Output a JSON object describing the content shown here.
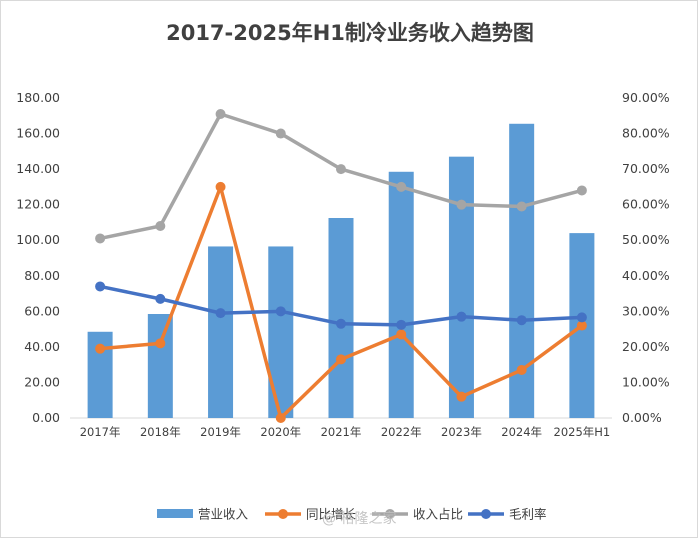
{
  "chart_data": {
    "type": "bar",
    "title": "2017-2025年H1制冷业务收入趋势图",
    "categories": [
      "2017年",
      "2018年",
      "2019年",
      "2020年",
      "2021年",
      "2022年",
      "2023年",
      "2024年",
      "2025年H1"
    ],
    "y_left": {
      "ylim": [
        0,
        180
      ],
      "ticks": [
        "0.00",
        "20.00",
        "40.00",
        "60.00",
        "80.00",
        "100.00",
        "120.00",
        "140.00",
        "160.00",
        "180.00"
      ]
    },
    "y_right": {
      "ylim": [
        0,
        0.9
      ],
      "ticks": [
        "0.00%",
        "10.00%",
        "20.00%",
        "30.00%",
        "40.00%",
        "50.00%",
        "60.00%",
        "70.00%",
        "80.00%",
        "90.00%"
      ]
    },
    "series": [
      {
        "name": "营业收入",
        "type": "bar",
        "axis": "left",
        "color": "#5b9bd5",
        "values": [
          48.5,
          58.5,
          96.5,
          96.5,
          112.5,
          138.5,
          147,
          165.5,
          104
        ]
      },
      {
        "name": "同比增长",
        "type": "line",
        "axis": "right",
        "color": "#ed7d31",
        "values": [
          0.195,
          0.21,
          0.65,
          0.0,
          0.165,
          0.235,
          0.06,
          0.135,
          0.26
        ]
      },
      {
        "name": "收入占比",
        "type": "line",
        "axis": "right",
        "color": "#a5a5a5",
        "values": [
          0.505,
          0.54,
          0.855,
          0.8,
          0.7,
          0.65,
          0.6,
          0.595,
          0.64
        ]
      },
      {
        "name": "毛利率",
        "type": "line",
        "axis": "right",
        "color": "#4472c4",
        "values": [
          0.37,
          0.335,
          0.295,
          0.3,
          0.265,
          0.262,
          0.285,
          0.275,
          0.283
        ]
      }
    ],
    "legend": "bottom",
    "grid": false
  },
  "watermark": "@ 格隆之家"
}
